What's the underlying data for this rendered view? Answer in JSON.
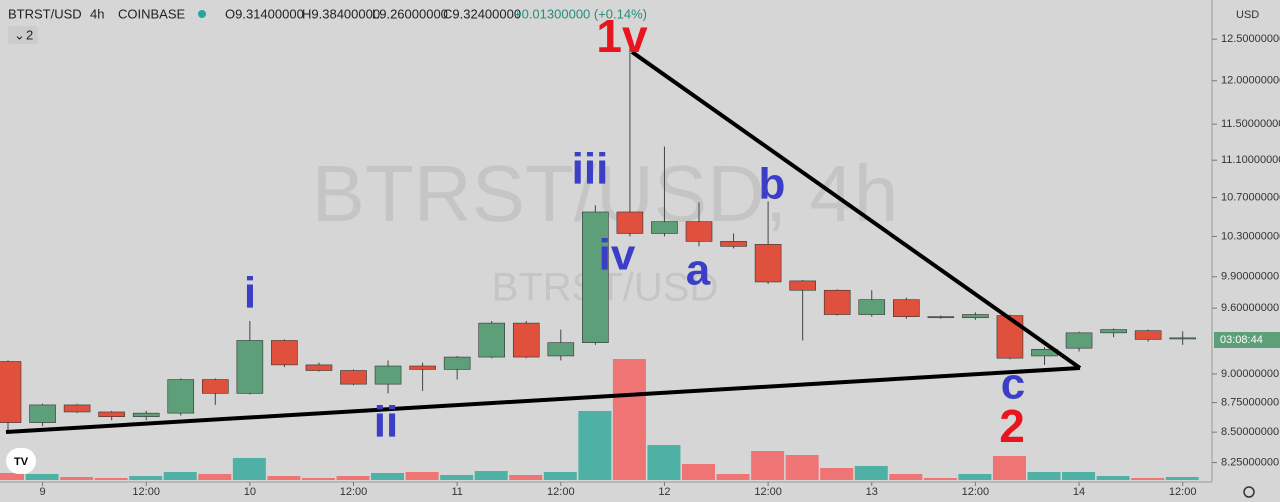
{
  "header": {
    "symbol": "BTRST/USD",
    "interval": "4h",
    "exchange": "COINBASE",
    "open": "O9.31400000",
    "high": "H9.38400000",
    "low": "L9.26000000",
    "close": "C9.32400000",
    "change": "+0.01300000 (+0.14%)",
    "indicators": "2",
    "currency": "USD"
  },
  "watermark": {
    "main": "BTRST/USD, 4h",
    "sub": "BTRST/USD"
  },
  "countdown": "03:08:44",
  "annotations": {
    "w1v": "1v",
    "wiii": "iii",
    "wiv": "iv",
    "wi": "i",
    "wii": "ii",
    "wa": "a",
    "wb": "b",
    "wc": "c",
    "w2": "2"
  },
  "chart_data": {
    "type": "candlestick",
    "categories": [
      null,
      "9",
      null,
      null,
      "12:00",
      null,
      null,
      "10",
      null,
      null,
      "12:00",
      null,
      null,
      "11",
      null,
      null,
      "12:00",
      null,
      null,
      "12",
      null,
      null,
      "12:00",
      null,
      null,
      "13",
      null,
      null,
      "12:00",
      null,
      null,
      "14",
      null,
      null,
      "12:00"
    ],
    "open": [
      9.11,
      8.58,
      8.73,
      8.67,
      8.63,
      8.66,
      8.95,
      8.83,
      9.3,
      9.08,
      9.03,
      8.91,
      9.07,
      9.04,
      9.15,
      9.46,
      9.16,
      9.28,
      10.55,
      10.33,
      10.45,
      10.25,
      10.22,
      9.86,
      9.77,
      9.54,
      9.68,
      9.52,
      9.51,
      9.53,
      9.16,
      9.23,
      9.37,
      9.39,
      9.314
    ],
    "high": [
      9.12,
      8.74,
      8.74,
      8.68,
      8.68,
      8.96,
      8.96,
      9.48,
      9.31,
      9.1,
      9.04,
      9.12,
      9.1,
      9.16,
      9.48,
      9.48,
      9.4,
      10.62,
      12.43,
      11.25,
      10.65,
      10.33,
      10.66,
      9.87,
      9.78,
      9.77,
      9.7,
      9.53,
      9.56,
      9.54,
      9.24,
      9.38,
      9.41,
      9.4,
      9.384
    ],
    "low": [
      8.51,
      8.55,
      8.66,
      8.6,
      8.6,
      8.64,
      8.73,
      8.82,
      9.06,
      9.02,
      8.9,
      8.83,
      8.85,
      8.95,
      9.14,
      9.14,
      9.12,
      9.26,
      10.3,
      10.3,
      10.2,
      10.18,
      9.83,
      9.3,
      9.53,
      9.52,
      9.5,
      9.5,
      9.49,
      9.13,
      9.08,
      9.2,
      9.33,
      9.29,
      9.26
    ],
    "close": [
      8.58,
      8.73,
      8.67,
      8.63,
      8.66,
      8.95,
      8.83,
      9.3,
      9.08,
      9.03,
      8.91,
      9.07,
      9.04,
      9.15,
      9.46,
      9.15,
      9.28,
      10.55,
      10.33,
      10.45,
      10.25,
      10.2,
      9.85,
      9.77,
      9.54,
      9.68,
      9.52,
      9.51,
      9.54,
      9.14,
      9.22,
      9.37,
      9.4,
      9.31,
      9.324
    ],
    "volume": [
      7,
      6,
      3,
      2,
      4,
      8,
      6,
      22,
      4,
      2,
      4,
      7,
      8,
      5,
      9,
      5,
      8,
      69,
      121,
      35,
      16,
      6,
      29,
      25,
      12,
      14,
      6,
      2,
      6,
      24,
      8,
      8,
      4,
      2,
      3
    ],
    "up_color": "#5d9f78",
    "down_color": "#e0513d",
    "vol_up_color": "#4fb1a5",
    "vol_down_color": "#ef7474",
    "ylim": [
      8.11,
      12.99
    ],
    "log_scale": true,
    "yticks": [
      {
        "value": 12.5,
        "label": "12.50000000"
      },
      {
        "value": 12.0,
        "label": "12.00000000"
      },
      {
        "value": 11.5,
        "label": "11.50000000"
      },
      {
        "value": 11.1,
        "label": "11.10000000"
      },
      {
        "value": 10.7,
        "label": "10.70000000"
      },
      {
        "value": 10.3,
        "label": "10.30000000"
      },
      {
        "value": 9.9,
        "label": "9.90000000"
      },
      {
        "value": 9.6,
        "label": "9.60000000"
      },
      {
        "value": 9.0,
        "label": "9.00000000"
      },
      {
        "value": 8.75,
        "label": "8.75000000"
      },
      {
        "value": 8.5,
        "label": "8.50000000"
      },
      {
        "value": 8.25,
        "label": "8.25000000"
      }
    ]
  }
}
